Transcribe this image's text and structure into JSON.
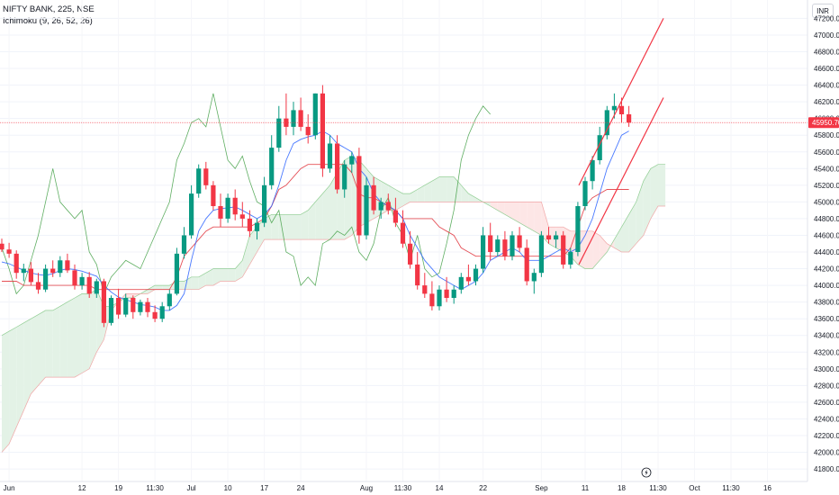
{
  "header": {
    "symbol_line": "NIFTY BANK, 225, NSE",
    "indicator_line": "Ichimoku (9, 26, 52, 26)",
    "currency": "INR"
  },
  "colors": {
    "up": "#089981",
    "down": "#f23645",
    "conversion": "#2962ff",
    "base": "#e0313a",
    "lagging": "#43a047",
    "cloud_bull": "#e3f2e6",
    "cloud_bear": "#fde6e6",
    "channel": "#f23645"
  },
  "chart_data": {
    "type": "candlestick",
    "symbol": "NIFTY BANK",
    "interval": "225",
    "exchange": "NSE",
    "indicator": "Ichimoku (9, 26, 52, 26)",
    "last_price": "45950.70",
    "y_ticks": [
      41800,
      42000,
      42200,
      42400,
      42600,
      42800,
      43000,
      43200,
      43400,
      43600,
      43800,
      44000,
      44200,
      44400,
      44600,
      44800,
      45000,
      45200,
      45400,
      45600,
      45800,
      46000,
      46200,
      46400,
      46600,
      46800,
      47000,
      47200
    ],
    "ylim": [
      41650,
      47420
    ],
    "x_ticks": [
      {
        "label": "Jun",
        "i": 1
      },
      {
        "label": "12",
        "i": 11
      },
      {
        "label": "19",
        "i": 16
      },
      {
        "label": "11:30",
        "i": 21
      },
      {
        "label": "Jul",
        "i": 26
      },
      {
        "label": "10",
        "i": 31
      },
      {
        "label": "17",
        "i": 36
      },
      {
        "label": "24",
        "i": 41
      },
      {
        "label": "Aug",
        "i": 50
      },
      {
        "label": "11:30",
        "i": 55
      },
      {
        "label": "14",
        "i": 60
      },
      {
        "label": "22",
        "i": 66
      },
      {
        "label": "Sep",
        "i": 74
      },
      {
        "label": "11",
        "i": 80
      },
      {
        "label": "18",
        "i": 85
      },
      {
        "label": "11:30",
        "i": 90
      },
      {
        "label": "Oct",
        "i": 95
      },
      {
        "label": "11:30",
        "i": 100
      },
      {
        "label": "16",
        "i": 105
      }
    ],
    "candles": [
      [
        44500,
        44560,
        44400,
        44430
      ],
      [
        44430,
        44510,
        44330,
        44380
      ],
      [
        44380,
        44420,
        44080,
        44150
      ],
      [
        44150,
        44260,
        44050,
        44200
      ],
      [
        44200,
        44280,
        44000,
        44040
      ],
      [
        44040,
        44150,
        43900,
        43950
      ],
      [
        43950,
        44250,
        43920,
        44200
      ],
      [
        44200,
        44300,
        44100,
        44150
      ],
      [
        44150,
        44350,
        44100,
        44300
      ],
      [
        44300,
        44380,
        44150,
        44180
      ],
      [
        44180,
        44250,
        43950,
        44000
      ],
      [
        44000,
        44150,
        43950,
        44100
      ],
      [
        44100,
        44160,
        43850,
        43900
      ],
      [
        43900,
        44080,
        43850,
        44050
      ],
      [
        44050,
        44080,
        43500,
        43550
      ],
      [
        43550,
        43880,
        43520,
        43850
      ],
      [
        43850,
        43960,
        43600,
        43650
      ],
      [
        43650,
        43900,
        43620,
        43850
      ],
      [
        43850,
        43880,
        43600,
        43680
      ],
      [
        43680,
        43830,
        43640,
        43800
      ],
      [
        43800,
        43850,
        43620,
        43680
      ],
      [
        43680,
        43760,
        43560,
        43600
      ],
      [
        43600,
        43800,
        43560,
        43750
      ],
      [
        43750,
        43950,
        43700,
        43900
      ],
      [
        43900,
        44450,
        43880,
        44380
      ],
      [
        44380,
        44700,
        44320,
        44600
      ],
      [
        44600,
        45200,
        44560,
        45100
      ],
      [
        45100,
        45450,
        45050,
        45400
      ],
      [
        45400,
        45480,
        45150,
        45200
      ],
      [
        45200,
        45250,
        44900,
        44950
      ],
      [
        44950,
        45100,
        44700,
        44800
      ],
      [
        44800,
        45100,
        44750,
        45050
      ],
      [
        45050,
        45150,
        44780,
        44850
      ],
      [
        44850,
        45000,
        44700,
        44800
      ],
      [
        44800,
        44900,
        44580,
        44650
      ],
      [
        44650,
        44800,
        44550,
        44750
      ],
      [
        44750,
        45300,
        44700,
        45200
      ],
      [
        45200,
        45800,
        45150,
        45650
      ],
      [
        45650,
        46150,
        45600,
        46000
      ],
      [
        46000,
        46300,
        45800,
        45900
      ],
      [
        45900,
        46200,
        45800,
        46100
      ],
      [
        46100,
        46250,
        45850,
        45900
      ],
      [
        45900,
        46050,
        45700,
        45800
      ],
      [
        45800,
        46300,
        45750,
        46300
      ],
      [
        46300,
        46400,
        45300,
        45400
      ],
      [
        45400,
        45800,
        45350,
        45700
      ],
      [
        45700,
        45800,
        45100,
        45150
      ],
      [
        45150,
        45500,
        45050,
        45450
      ],
      [
        45450,
        45600,
        45350,
        45550
      ],
      [
        45550,
        45650,
        44500,
        44600
      ],
      [
        44600,
        45300,
        44550,
        45200
      ],
      [
        45200,
        45300,
        44850,
        44900
      ],
      [
        44900,
        45050,
        44800,
        45000
      ],
      [
        45000,
        45100,
        44850,
        44900
      ],
      [
        44900,
        45050,
        44700,
        44750
      ],
      [
        44750,
        44900,
        44450,
        44500
      ],
      [
        44500,
        44650,
        44200,
        44250
      ],
      [
        44250,
        44400,
        43950,
        44000
      ],
      [
        44000,
        44150,
        43850,
        43900
      ],
      [
        43900,
        44050,
        43700,
        43750
      ],
      [
        43750,
        44000,
        43700,
        43950
      ],
      [
        43950,
        44100,
        43800,
        43850
      ],
      [
        43850,
        44000,
        43780,
        43950
      ],
      [
        43950,
        44150,
        43900,
        44100
      ],
      [
        44100,
        44250,
        44000,
        44050
      ],
      [
        44050,
        44250,
        44000,
        44200
      ],
      [
        44200,
        44700,
        44150,
        44600
      ],
      [
        44600,
        44750,
        44300,
        44400
      ],
      [
        44400,
        44600,
        44350,
        44550
      ],
      [
        44550,
        44650,
        44300,
        44350
      ],
      [
        44350,
        44650,
        44300,
        44600
      ],
      [
        44600,
        44700,
        44400,
        44450
      ],
      [
        44450,
        44550,
        44000,
        44050
      ],
      [
        44050,
        44200,
        43900,
        44150
      ],
      [
        44150,
        44650,
        44100,
        44600
      ],
      [
        44600,
        44700,
        44500,
        44550
      ],
      [
        44550,
        44650,
        44450,
        44600
      ],
      [
        44600,
        44650,
        44200,
        44250
      ],
      [
        44250,
        44450,
        44200,
        44400
      ],
      [
        44400,
        45000,
        44350,
        44950
      ],
      [
        44950,
        45300,
        44900,
        45250
      ],
      [
        45250,
        45550,
        45150,
        45500
      ],
      [
        45500,
        45900,
        45450,
        45800
      ],
      [
        45800,
        46150,
        45750,
        46100
      ],
      [
        46100,
        46300,
        46000,
        46150
      ],
      [
        46150,
        46250,
        45950,
        46050
      ],
      [
        46050,
        46150,
        45900,
        45950
      ]
    ],
    "conversion_line": [
      44280,
      44260,
      44220,
      44180,
      44150,
      44130,
      44120,
      44140,
      44180,
      44200,
      44190,
      44170,
      44140,
      44110,
      44000,
      43920,
      43860,
      43830,
      43800,
      43770,
      43760,
      43740,
      43700,
      43700,
      43760,
      43900,
      44300,
      44650,
      44800,
      44900,
      44920,
      44930,
      44940,
      44900,
      44850,
      44800,
      44850,
      44950,
      45200,
      45500,
      45700,
      45750,
      45780,
      45800,
      45850,
      45800,
      45700,
      45650,
      45600,
      45400,
      45300,
      45100,
      45000,
      44950,
      44900,
      44800,
      44600,
      44450,
      44300,
      44200,
      44100,
      44050,
      44000,
      43950,
      44000,
      44050,
      44150,
      44300,
      44350,
      44400,
      44450,
      44400,
      44300,
      44300,
      44300,
      44350,
      44400,
      44450,
      44400,
      44450,
      44600,
      44800,
      45100,
      45400,
      45600,
      45800,
      45850
    ],
    "base_line": [
      44050,
      44050,
      44050,
      44000,
      44000,
      44000,
      44000,
      44000,
      44000,
      44000,
      44000,
      44000,
      44000,
      43950,
      43950,
      43950,
      43950,
      43950,
      43950,
      43950,
      43950,
      43950,
      43950,
      43950,
      44100,
      44350,
      44450,
      44550,
      44650,
      44700,
      44700,
      44700,
      44700,
      44700,
      44700,
      44750,
      44800,
      44950,
      45150,
      45200,
      45300,
      45400,
      45450,
      45450,
      45450,
      45450,
      45450,
      45450,
      45350,
      45100,
      45050,
      45050,
      45000,
      44950,
      44900,
      44800,
      44800,
      44800,
      44800,
      44800,
      44700,
      44650,
      44600,
      44450,
      44400,
      44350,
      44350,
      44350,
      44350,
      44350,
      44350,
      44350,
      44350,
      44350,
      44350,
      44350,
      44350,
      44350,
      44450,
      44700,
      44950,
      45050,
      45100,
      45150,
      45150,
      45150,
      45150
    ],
    "senkou_a": [
      43400,
      43450,
      43500,
      43550,
      43600,
      43650,
      43700,
      43700,
      43750,
      43800,
      43850,
      43900,
      43900,
      43950,
      43750,
      43750,
      43800,
      43850,
      43850,
      43900,
      43950,
      44000,
      44000,
      44000,
      44050,
      44050,
      44100,
      44100,
      44150,
      44200,
      44200,
      44200,
      44200,
      44300,
      44600,
      44700,
      44800,
      44850,
      44850,
      44850,
      44850,
      44850,
      44900,
      45000,
      45100,
      45200,
      45350,
      45500,
      45550,
      45500,
      45400,
      45300,
      45250,
      45200,
      45150,
      45100,
      45100,
      45150,
      45200,
      45250,
      45300,
      45300,
      45300,
      45200,
      45100,
      45050,
      45000,
      44950,
      44900,
      44850,
      44800,
      44750,
      44700,
      44650,
      44600,
      44500,
      44450,
      44400,
      44350,
      44250,
      44200,
      44200,
      44300,
      44400,
      44550,
      44700,
      44850,
      45000,
      45250,
      45400,
      45450,
      45450
    ],
    "senkou_b": [
      42000,
      42100,
      42300,
      42500,
      42700,
      42800,
      42900,
      42900,
      42900,
      42900,
      42900,
      42950,
      43000,
      43200,
      43350,
      43700,
      43800,
      43900,
      43900,
      43900,
      43900,
      43950,
      43950,
      43950,
      43950,
      43950,
      43950,
      43950,
      44000,
      44000,
      44050,
      44050,
      44050,
      44100,
      44250,
      44400,
      44550,
      44550,
      44550,
      44550,
      44550,
      44550,
      44550,
      44550,
      44550,
      44550,
      44550,
      44550,
      44600,
      44700,
      44750,
      44800,
      44850,
      44900,
      44900,
      44950,
      45000,
      45000,
      45000,
      45000,
      45000,
      45000,
      45000,
      45000,
      45000,
      45000,
      45000,
      45000,
      45000,
      45000,
      45000,
      45000,
      45000,
      45000,
      45000,
      44700,
      44700,
      44700,
      44650,
      44650,
      44650,
      44650,
      44600,
      44500,
      44450,
      44400,
      44400,
      44500,
      44600,
      44800,
      44950,
      44950
    ],
    "lagging_span": [
      44450,
      44200,
      43900,
      44000,
      44300,
      44600,
      45000,
      45400,
      45000,
      44900,
      44800,
      44900,
      44400,
      44250,
      43900,
      44100,
      44200,
      44300,
      44250,
      44200,
      44400,
      44600,
      44800,
      45000,
      45500,
      45700,
      45950,
      46000,
      45900,
      46300,
      45900,
      45500,
      45400,
      45550,
      45250,
      45000,
      44950,
      44750,
      44900,
      44400,
      44350,
      44000,
      44100,
      44000,
      44500,
      44550,
      44650,
      44600,
      44700,
      44400,
      44300,
      44500,
      44900,
      45050,
      44750,
      44600,
      44300,
      44600,
      44200,
      44100,
      44150,
      44500,
      44900,
      45500,
      45800,
      46000,
      46150,
      46050
    ]
  }
}
